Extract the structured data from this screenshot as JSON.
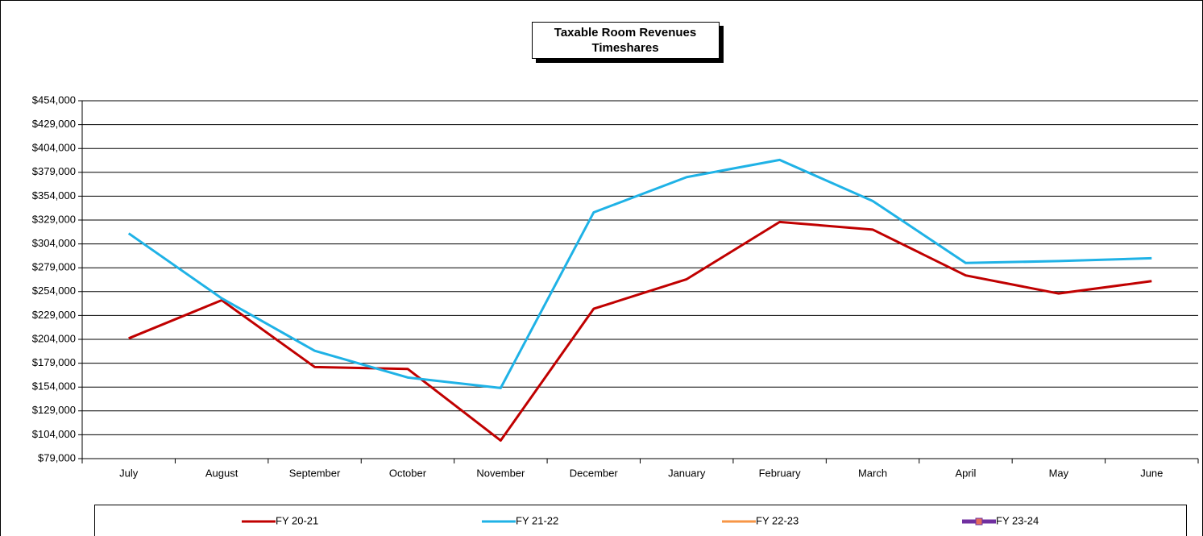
{
  "chart_data": {
    "type": "line",
    "title": [
      "Taxable Room Revenues",
      "Timeshares"
    ],
    "categories": [
      "July",
      "August",
      "September",
      "October",
      "November",
      "December",
      "January",
      "February",
      "March",
      "April",
      "May",
      "June"
    ],
    "series": [
      {
        "name": "FY 20-21",
        "color": "#c00000",
        "values": [
          205000,
          245000,
          175000,
          173000,
          98000,
          236000,
          267000,
          327000,
          319000,
          271000,
          252000,
          265000
        ]
      },
      {
        "name": "FY 21-22",
        "color": "#1fb2e6",
        "values": [
          315000,
          247000,
          192000,
          164000,
          153000,
          337000,
          374000,
          392000,
          349000,
          284000,
          286000,
          289000
        ]
      },
      {
        "name": "FY 22-23",
        "color": "#f79646",
        "values": [
          null,
          null,
          null,
          null,
          null,
          null,
          null,
          null,
          null,
          null,
          null,
          null
        ]
      },
      {
        "name": "FY 23-24",
        "color": "#7030a0",
        "marker_color": "#e46c5a",
        "values": [
          null,
          null,
          null,
          null,
          null,
          null,
          null,
          null,
          null,
          null,
          null,
          null
        ]
      }
    ],
    "ylim": [
      79000,
      454000
    ],
    "yticks": [
      {
        "value": 79000,
        "label": "$79,000"
      },
      {
        "value": 104000,
        "label": "$104,000"
      },
      {
        "value": 129000,
        "label": "$129,000"
      },
      {
        "value": 154000,
        "label": "$154,000"
      },
      {
        "value": 179000,
        "label": "$179,000"
      },
      {
        "value": 204000,
        "label": "$204,000"
      },
      {
        "value": 229000,
        "label": "$229,000"
      },
      {
        "value": 254000,
        "label": "$254,000"
      },
      {
        "value": 279000,
        "label": "$279,000"
      },
      {
        "value": 304000,
        "label": "$304,000"
      },
      {
        "value": 329000,
        "label": "$329,000"
      },
      {
        "value": 354000,
        "label": "$354,000"
      },
      {
        "value": 379000,
        "label": "$379,000"
      },
      {
        "value": 404000,
        "label": "$404,000"
      },
      {
        "value": 429000,
        "label": "$429,000"
      },
      {
        "value": 454000,
        "label": "$454,000"
      }
    ],
    "grid": true,
    "legend": "bottom"
  }
}
